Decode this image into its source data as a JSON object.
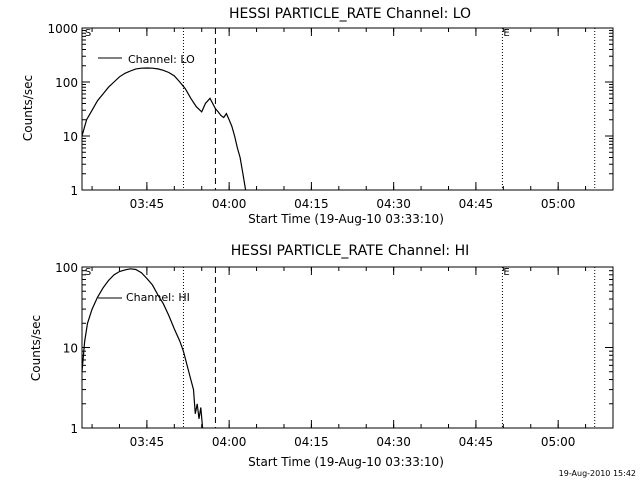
{
  "footer": {
    "timestamp": "19-Aug-2010 15:42"
  },
  "chart_data": [
    {
      "type": "line",
      "title": "HESSI PARTICLE_RATE Channel: LO",
      "xlabel": "Start Time (19-Aug-10 03:33:10)",
      "ylabel": "Counts/sec",
      "y_scale": "log",
      "xlim": [
        "03:33:10",
        "05:10:00"
      ],
      "ylim": [
        1,
        1000
      ],
      "x_ticks": [
        "03:45",
        "04:00",
        "04:15",
        "04:30",
        "04:45",
        "05:00"
      ],
      "y_ticks": [
        "1",
        "10",
        "100",
        "1000"
      ],
      "legend": {
        "placement": "top-left",
        "entries": [
          "Channel: LO"
        ]
      },
      "markers": [
        {
          "label": "S",
          "time": "03:33:30"
        },
        {
          "label": "E",
          "time": "04:49:50"
        }
      ],
      "vlines": [
        {
          "style": "dotted",
          "time": "03:51:40"
        },
        {
          "style": "dashed",
          "time": "03:57:30"
        },
        {
          "style": "dotted",
          "time": "04:49:50"
        },
        {
          "style": "dotted",
          "time": "05:06:40"
        }
      ],
      "series": [
        {
          "x": [
            "03:33:10",
            "03:34:00",
            "03:35:00",
            "03:36:00",
            "03:37:00",
            "03:38:00",
            "03:39:00",
            "03:40:00",
            "03:41:00",
            "03:42:00",
            "03:43:00",
            "03:44:00",
            "03:45:00",
            "03:46:00",
            "03:47:00",
            "03:48:00",
            "03:49:00",
            "03:50:00",
            "03:51:00",
            "03:52:00",
            "03:53:00",
            "03:54:00",
            "03:55:00",
            "03:55:40",
            "03:56:30",
            "03:57:00",
            "03:57:30",
            "03:58:00",
            "03:58:30",
            "03:59:00",
            "03:59:30",
            "04:00:00",
            "04:00:30",
            "04:01:00",
            "04:01:30",
            "04:02:00",
            "04:02:30",
            "04:03:00"
          ],
          "y": [
            10,
            20,
            30,
            45,
            60,
            80,
            100,
            125,
            145,
            160,
            175,
            180,
            182,
            180,
            175,
            165,
            150,
            130,
            100,
            75,
            50,
            35,
            28,
            40,
            50,
            40,
            32,
            28,
            24,
            22,
            26,
            20,
            15,
            10,
            6,
            4,
            2,
            1
          ]
        }
      ]
    },
    {
      "type": "line",
      "title": "HESSI PARTICLE_RATE Channel: HI",
      "xlabel": "Start Time (19-Aug-10 03:33:10)",
      "ylabel": "Counts/sec",
      "y_scale": "log",
      "xlim": [
        "03:33:10",
        "05:10:00"
      ],
      "ylim": [
        1,
        100
      ],
      "x_ticks": [
        "03:45",
        "04:00",
        "04:15",
        "04:30",
        "04:45",
        "05:00"
      ],
      "y_ticks": [
        "1",
        "10",
        "100"
      ],
      "legend": {
        "placement": "top-left",
        "entries": [
          "Channel: HI"
        ]
      },
      "markers": [
        {
          "label": "S",
          "time": "03:33:30"
        },
        {
          "label": "E",
          "time": "04:49:50"
        }
      ],
      "vlines": [
        {
          "style": "dotted",
          "time": "03:51:40"
        },
        {
          "style": "dashed",
          "time": "03:57:30"
        },
        {
          "style": "dotted",
          "time": "04:49:50"
        },
        {
          "style": "dotted",
          "time": "05:06:40"
        }
      ],
      "series": [
        {
          "x": [
            "03:33:10",
            "03:33:40",
            "03:34:10",
            "03:35:00",
            "03:36:00",
            "03:37:00",
            "03:38:00",
            "03:39:00",
            "03:40:00",
            "03:41:00",
            "03:42:00",
            "03:43:00",
            "03:44:00",
            "03:45:00",
            "03:46:00",
            "03:47:00",
            "03:48:00",
            "03:49:00",
            "03:50:00",
            "03:51:00",
            "03:51:40",
            "03:52:20",
            "03:53:00",
            "03:53:30",
            "03:53:50",
            "03:54:10",
            "03:54:30",
            "03:54:50",
            "03:55:10"
          ],
          "y": [
            5,
            12,
            20,
            30,
            42,
            55,
            68,
            80,
            88,
            92,
            95,
            93,
            85,
            72,
            60,
            45,
            35,
            25,
            17,
            12,
            9,
            6,
            4,
            3,
            1.5,
            2,
            1.3,
            1.8,
            1
          ]
        }
      ]
    }
  ]
}
